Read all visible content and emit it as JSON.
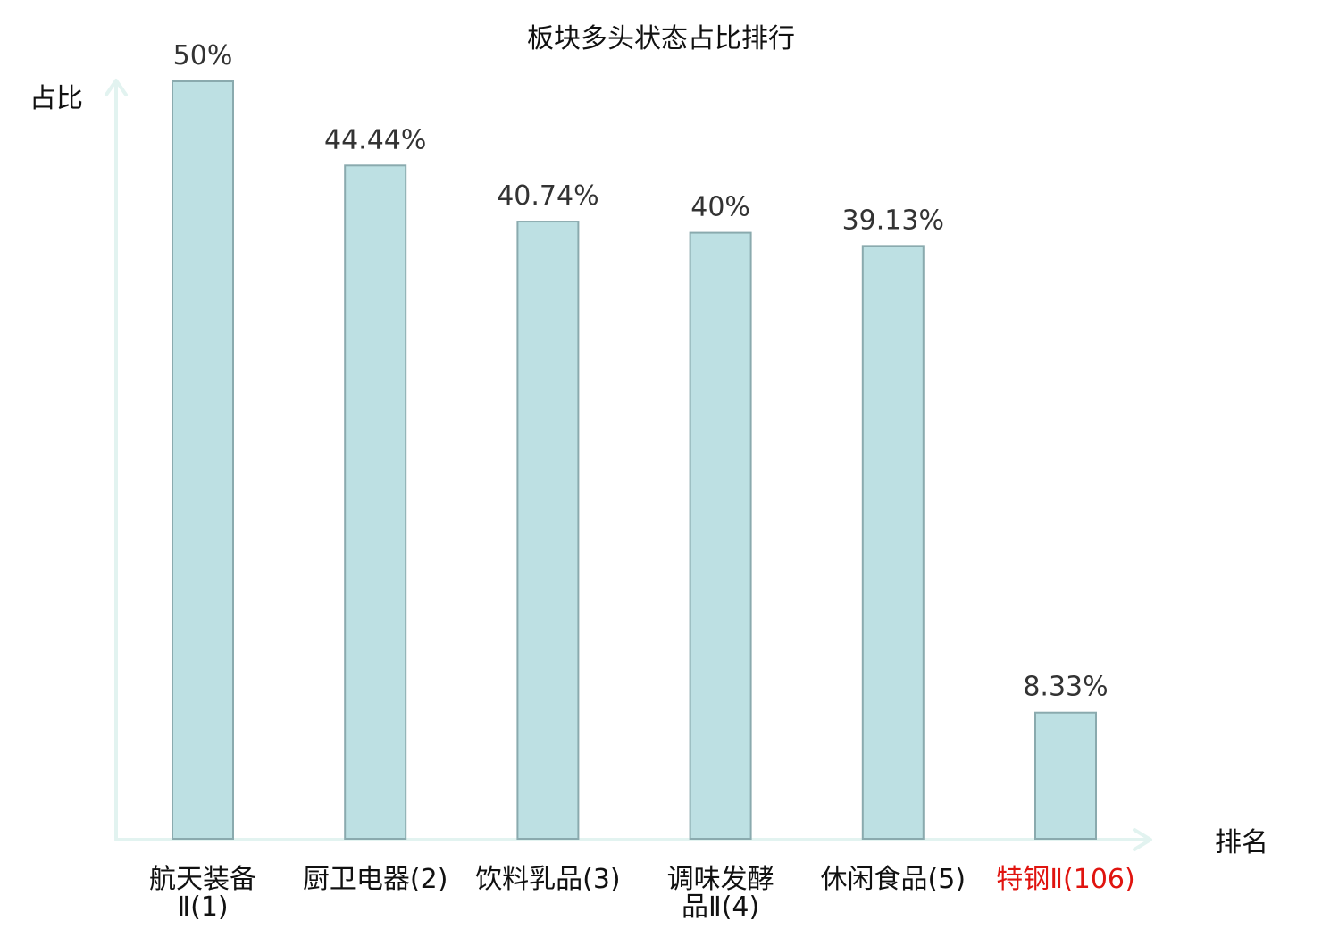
{
  "chart_data": {
    "type": "bar",
    "title": "板块多头状态占比排行",
    "ylabel": "占比",
    "xlabel": "排名",
    "ylim": [
      0,
      50
    ],
    "grid": false,
    "categories": [
      [
        "航天装备",
        "Ⅱ(1)"
      ],
      [
        "厨卫电器(2)"
      ],
      [
        "饮料乳品(3)"
      ],
      [
        "调味发酵",
        "品Ⅱ(4)"
      ],
      [
        "休闲食品(5)"
      ],
      [
        "特钢Ⅱ(106)"
      ]
    ],
    "values": [
      50,
      44.44,
      40.74,
      40,
      39.13,
      8.33
    ],
    "value_labels": [
      "50%",
      "44.44%",
      "40.74%",
      "40%",
      "39.13%",
      "8.33%"
    ],
    "highlight_index": 5,
    "colors": {
      "bar_fill": "#bde0e3",
      "bar_stroke": "#8aaaae",
      "axis": "#e2f3f0",
      "highlight_text": "#e0140f"
    }
  }
}
